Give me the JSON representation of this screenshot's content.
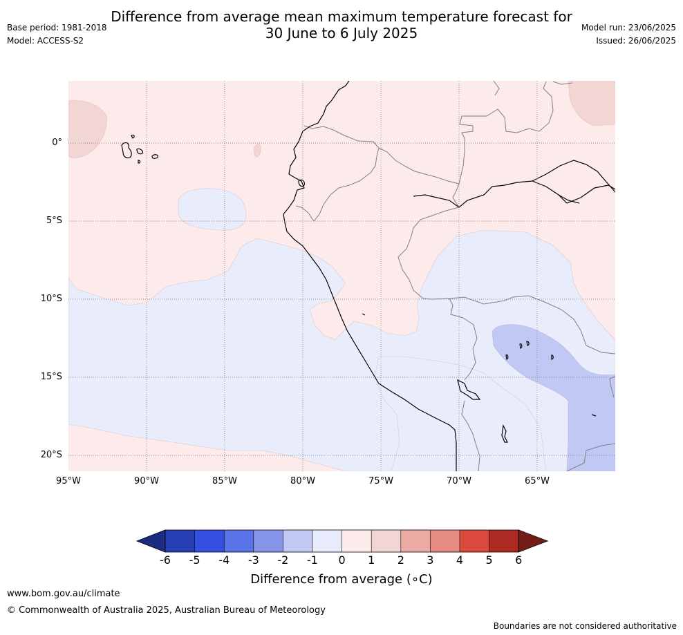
{
  "header": {
    "title_line1": "Difference from average mean maximum temperature forecast for",
    "title_line2": "30 June to 6 July 2025",
    "base_period": "Base period: 1981-2018",
    "model": "Model: ACCESS-S2",
    "model_run": "Model run: 23/06/2025",
    "issued": "Issued: 26/06/2025"
  },
  "map": {
    "lon_labels": [
      "95°W",
      "90°W",
      "85°W",
      "80°W",
      "75°W",
      "70°W",
      "65°W"
    ],
    "lat_labels": [
      "0°",
      "5°S",
      "10°S",
      "15°S",
      "20°S"
    ],
    "colors": {
      "ocean_neutral": "#fcebea",
      "warm_1_2": "#f2d6d4",
      "cool_0_1": "#e8ecfb",
      "cool_1_2": "#c1c8f4",
      "coast": "#000000",
      "border": "#808080"
    }
  },
  "colorbar": {
    "tick_labels": [
      "-6",
      "-5",
      "-4",
      "-3",
      "-2",
      "-1",
      "0",
      "1",
      "2",
      "3",
      "4",
      "5",
      "6"
    ],
    "colors": [
      "#1c2a80",
      "#273fb4",
      "#3450e0",
      "#5a73e6",
      "#8593e9",
      "#c1c8f4",
      "#e8ebfb",
      "#fcebea",
      "#f2d6d4",
      "#ecaaa4",
      "#e58b82",
      "#db4a3c",
      "#ad2a22",
      "#741c17"
    ],
    "label": "Difference from average (∘C)"
  },
  "footer": {
    "website": "www.bom.gov.au/climate",
    "copyright": "© Commonwealth of Australia 2025, Australian Bureau of Meteorology",
    "disclaimer": "Boundaries are not considered authoritative"
  }
}
